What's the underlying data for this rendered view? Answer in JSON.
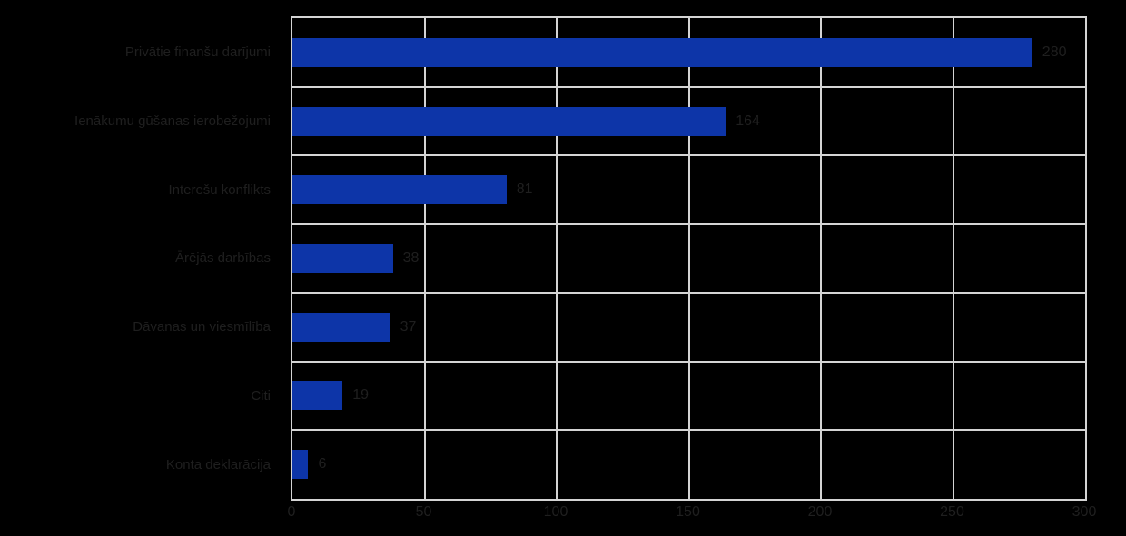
{
  "window": {
    "background_color": "#000000"
  },
  "chart_data": {
    "type": "bar",
    "orientation": "horizontal",
    "title": "",
    "xlabel": "",
    "ylabel": "",
    "categories": [
      "Privātie finanšu darījumi",
      "Ienākumu gūšanas ierobežojumi",
      "Interešu konflikts",
      "Ārējās darbības",
      "Dāvanas un viesmīlība",
      "Citi",
      "Konta deklarācija"
    ],
    "values": [
      280,
      164,
      81,
      38,
      37,
      19,
      6
    ],
    "data_labels": [
      "280",
      "164",
      "81",
      "38",
      "37",
      "19",
      "6"
    ],
    "xlim": [
      0,
      300
    ],
    "x_ticks": [
      0,
      50,
      100,
      150,
      200,
      250,
      300
    ],
    "x_tick_labels": [
      "0",
      "50",
      "100",
      "150",
      "200",
      "250",
      "300"
    ],
    "legend": "none",
    "grid": "vertical gridlines at each x tick, horizontal separators between category rows",
    "colors": {
      "bar": "#0d35a8",
      "grid_line": "#d4d4d4",
      "text": "#1f1f1f",
      "background": "#000000"
    }
  }
}
